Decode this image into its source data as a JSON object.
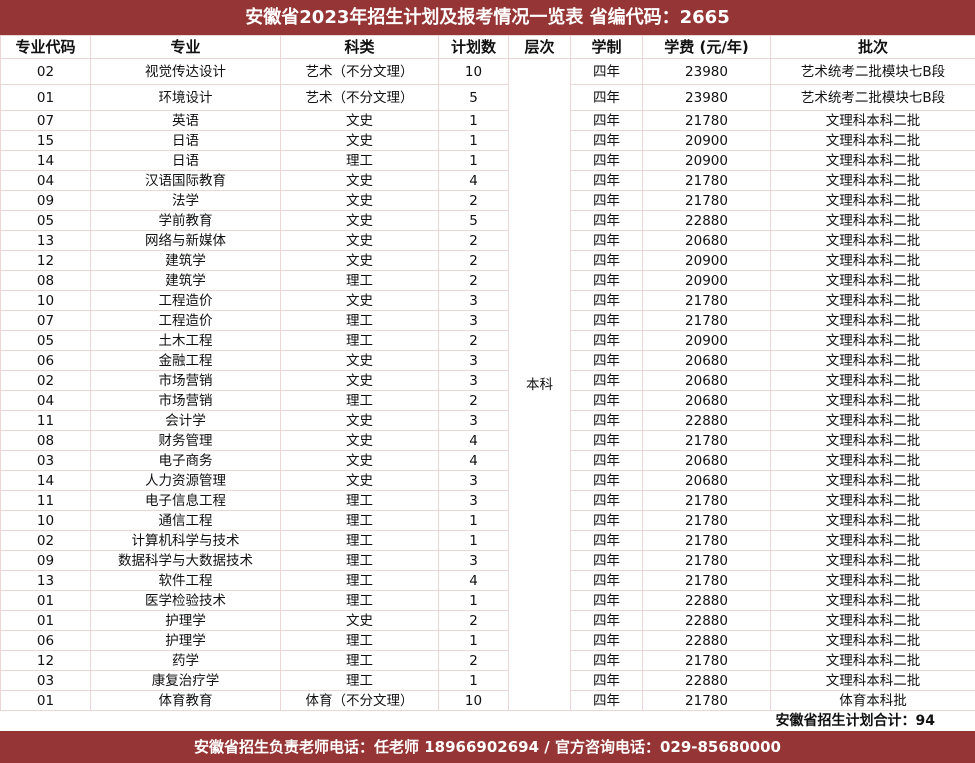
{
  "title": "安徽省2023年招生计划及报考情况一览表 省编代码：2665",
  "headers": [
    "专业代码",
    "专业",
    "科类",
    "计划数",
    "层次",
    "学制",
    "学费 (元/年)",
    "批次"
  ],
  "level": "本科",
  "duration": "四年",
  "rows": [
    [
      "02",
      "视觉传达设计",
      "艺术（不分文理）",
      "10",
      "23980",
      "艺术统考二批模块七B段"
    ],
    [
      "01",
      "环境设计",
      "艺术（不分文理）",
      "5",
      "23980",
      "艺术统考二批模块七B段"
    ],
    [
      "07",
      "英语",
      "文史",
      "1",
      "21780",
      "文理科本科二批"
    ],
    [
      "15",
      "日语",
      "文史",
      "1",
      "20900",
      "文理科本科二批"
    ],
    [
      "14",
      "日语",
      "理工",
      "1",
      "20900",
      "文理科本科二批"
    ],
    [
      "04",
      "汉语国际教育",
      "文史",
      "4",
      "21780",
      "文理科本科二批"
    ],
    [
      "09",
      "法学",
      "文史",
      "2",
      "21780",
      "文理科本科二批"
    ],
    [
      "05",
      "学前教育",
      "文史",
      "5",
      "22880",
      "文理科本科二批"
    ],
    [
      "13",
      "网络与新媒体",
      "文史",
      "2",
      "20680",
      "文理科本科二批"
    ],
    [
      "12",
      "建筑学",
      "文史",
      "2",
      "20900",
      "文理科本科二批"
    ],
    [
      "08",
      "建筑学",
      "理工",
      "2",
      "20900",
      "文理科本科二批"
    ],
    [
      "10",
      "工程造价",
      "文史",
      "3",
      "21780",
      "文理科本科二批"
    ],
    [
      "07",
      "工程造价",
      "理工",
      "3",
      "21780",
      "文理科本科二批"
    ],
    [
      "05",
      "土木工程",
      "理工",
      "2",
      "20900",
      "文理科本科二批"
    ],
    [
      "06",
      "金融工程",
      "文史",
      "3",
      "20680",
      "文理科本科二批"
    ],
    [
      "02",
      "市场营销",
      "文史",
      "3",
      "20680",
      "文理科本科二批"
    ],
    [
      "04",
      "市场营销",
      "理工",
      "2",
      "20680",
      "文理科本科二批"
    ],
    [
      "11",
      "会计学",
      "文史",
      "3",
      "22880",
      "文理科本科二批"
    ],
    [
      "08",
      "财务管理",
      "文史",
      "4",
      "21780",
      "文理科本科二批"
    ],
    [
      "03",
      "电子商务",
      "文史",
      "4",
      "20680",
      "文理科本科二批"
    ],
    [
      "14",
      "人力资源管理",
      "文史",
      "3",
      "20680",
      "文理科本科二批"
    ],
    [
      "11",
      "电子信息工程",
      "理工",
      "3",
      "21780",
      "文理科本科二批"
    ],
    [
      "10",
      "通信工程",
      "理工",
      "1",
      "21780",
      "文理科本科二批"
    ],
    [
      "02",
      "计算机科学与技术",
      "理工",
      "1",
      "21780",
      "文理科本科二批"
    ],
    [
      "09",
      "数据科学与大数据技术",
      "理工",
      "3",
      "21780",
      "文理科本科二批"
    ],
    [
      "13",
      "软件工程",
      "理工",
      "4",
      "21780",
      "文理科本科二批"
    ],
    [
      "01",
      "医学检验技术",
      "理工",
      "1",
      "22880",
      "文理科本科二批"
    ],
    [
      "01",
      "护理学",
      "文史",
      "2",
      "22880",
      "文理科本科二批"
    ],
    [
      "06",
      "护理学",
      "理工",
      "1",
      "22880",
      "文理科本科二批"
    ],
    [
      "12",
      "药学",
      "理工",
      "2",
      "21780",
      "文理科本科二批"
    ],
    [
      "03",
      "康复治疗学",
      "理工",
      "1",
      "22880",
      "文理科本科二批"
    ],
    [
      "01",
      "体育教育",
      "体育（不分文理）",
      "10",
      "21780",
      "体育本科批"
    ]
  ],
  "total": "安徽省招生计划合计：94",
  "footer": "安徽省招生负责老师电话：任老师 18966902694  /  官方咨询电话：029-85680000"
}
